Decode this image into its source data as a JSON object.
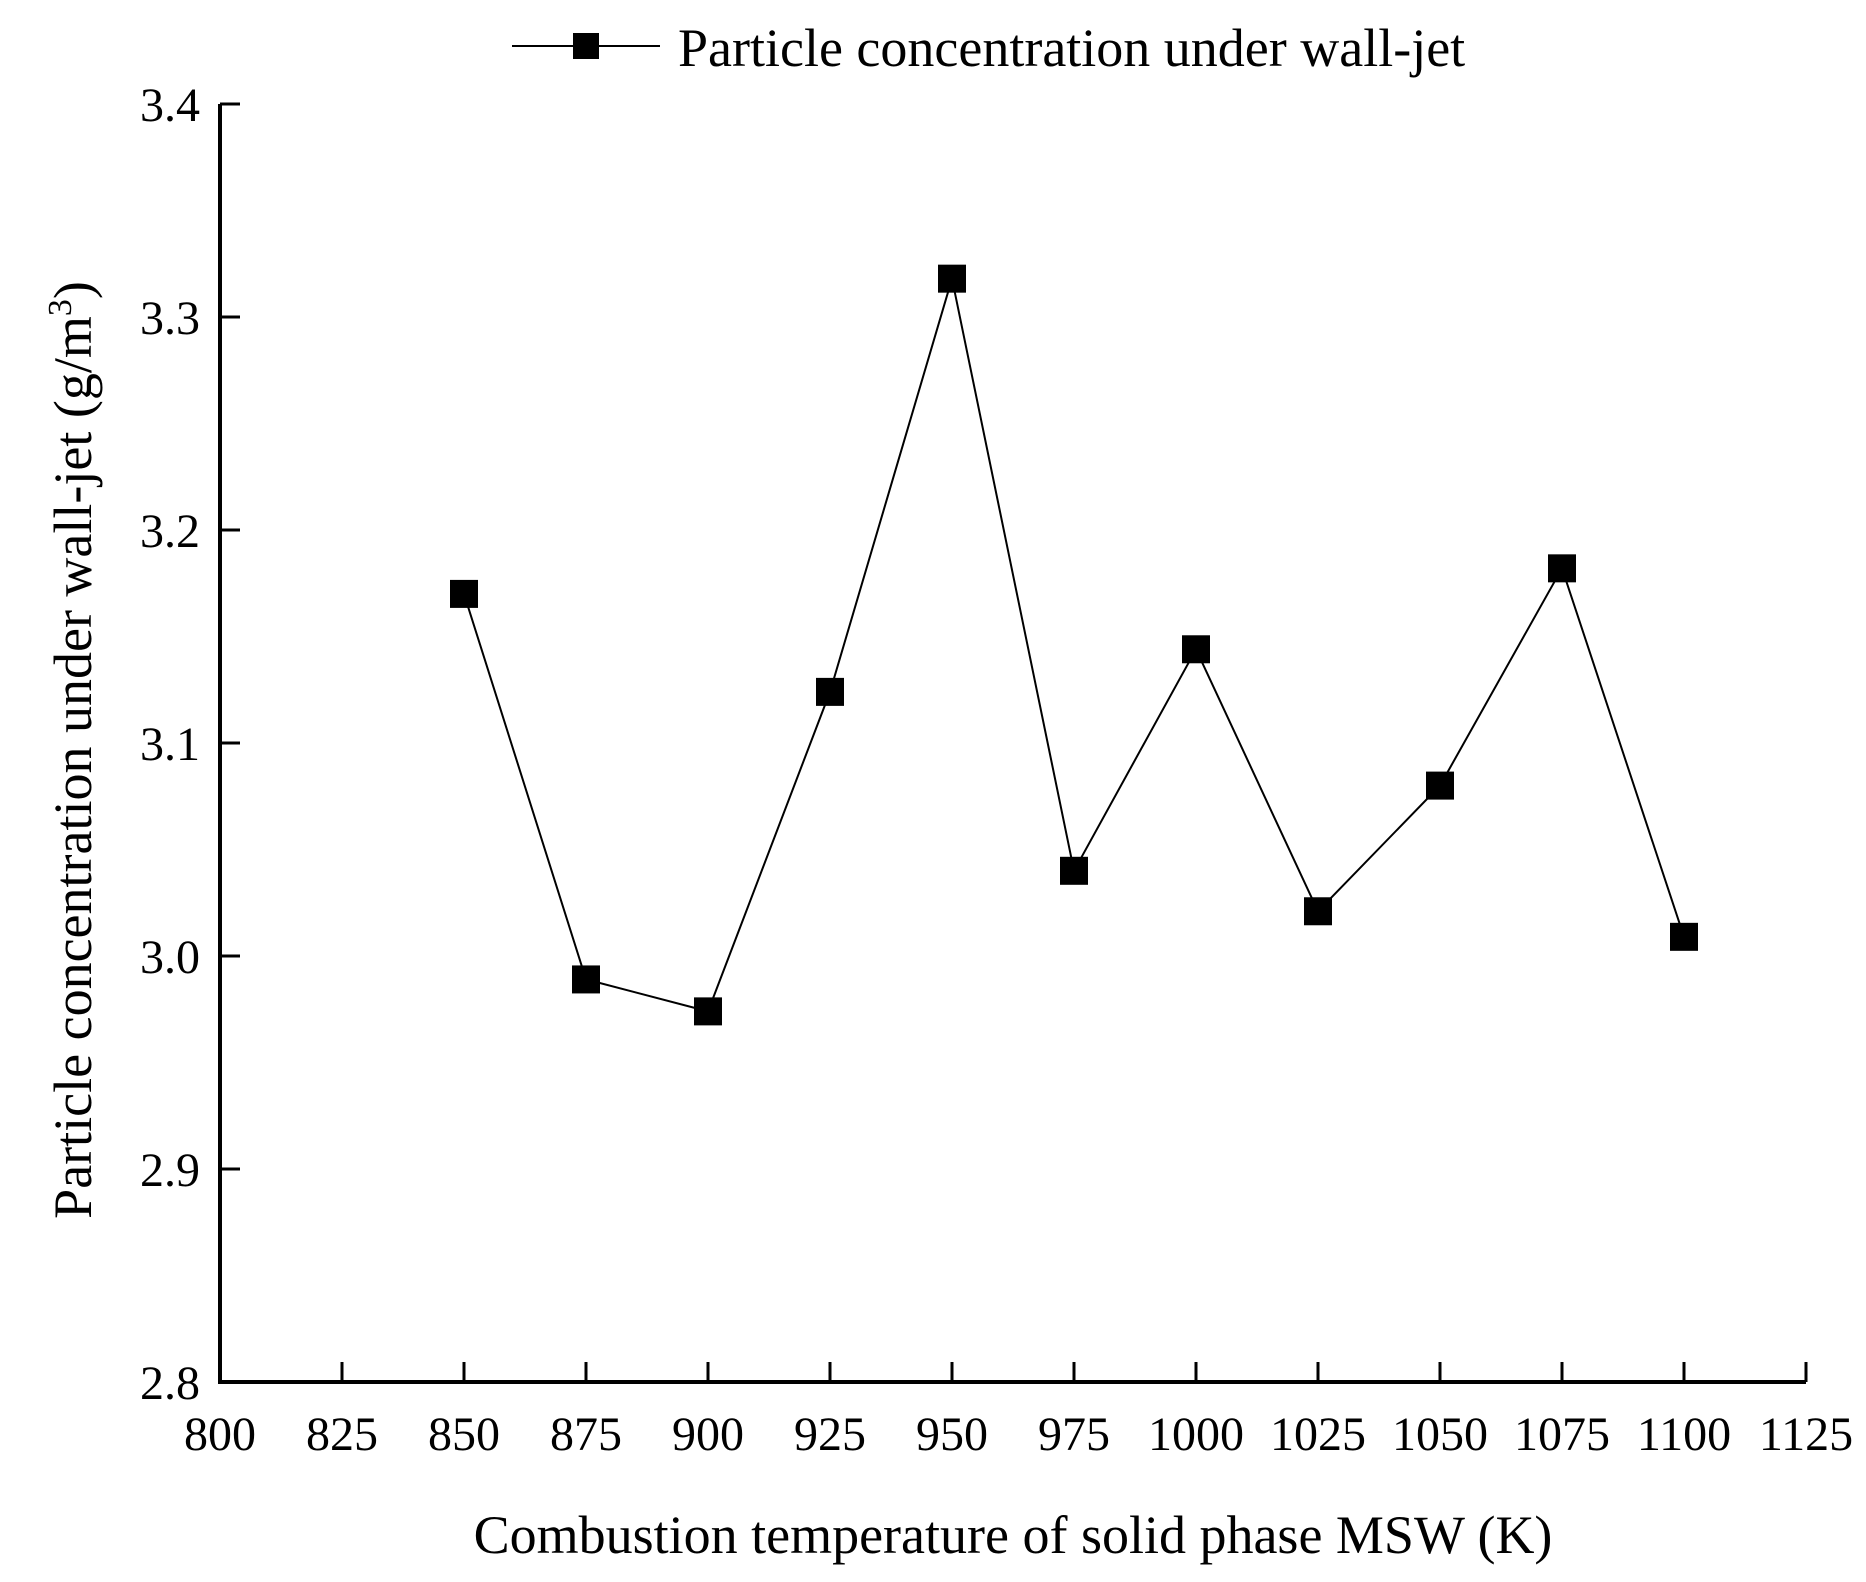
{
  "chart_data": {
    "type": "line",
    "title": "",
    "xlabel": "Combustion temperature of solid phase MSW (K)",
    "ylabel_main": "Particle concentration under wall-jet (g/m",
    "ylabel_sup": "3",
    "ylabel_close": ")",
    "xlim": [
      800,
      1125
    ],
    "ylim": [
      2.8,
      3.4
    ],
    "xticks": [
      800,
      825,
      850,
      875,
      900,
      925,
      950,
      975,
      1000,
      1025,
      1050,
      1075,
      1100,
      1125
    ],
    "xtick_labels": [
      "800",
      "825",
      "850",
      "875",
      "900",
      "925",
      "950",
      "975",
      "1000",
      "1025",
      "1050",
      "1075",
      "1100",
      "1125"
    ],
    "yticks": [
      2.8,
      2.9,
      3.0,
      3.1,
      3.2,
      3.3,
      3.4
    ],
    "ytick_labels": [
      "2.8",
      "2.9",
      "3.0",
      "3.1",
      "3.2",
      "3.3",
      "3.4"
    ],
    "grid": false,
    "legend_position": "top",
    "series": [
      {
        "name": "Particle concentration under wall-jet",
        "marker": "square",
        "color": "#000000",
        "x": [
          850,
          875,
          900,
          925,
          950,
          975,
          1000,
          1025,
          1050,
          1075,
          1100
        ],
        "y": [
          3.17,
          2.989,
          2.974,
          3.124,
          3.318,
          3.04,
          3.144,
          3.021,
          3.08,
          3.182,
          3.009
        ]
      }
    ]
  }
}
